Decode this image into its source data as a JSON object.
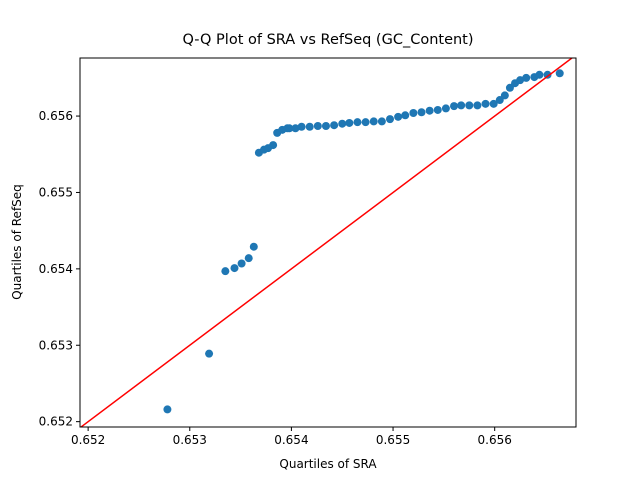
{
  "chart_data": {
    "type": "scatter",
    "title": "Q-Q Plot of SRA vs RefSeq (GC_Content)",
    "xlabel": "Quartiles of SRA",
    "ylabel": "Quartiles of RefSeq",
    "xlim": [
      0.65192,
      0.6568
    ],
    "ylim": [
      0.65193,
      0.65676
    ],
    "xticks": [
      0.652,
      0.653,
      0.654,
      0.655,
      0.656
    ],
    "yticks": [
      0.652,
      0.653,
      0.654,
      0.655,
      0.656
    ],
    "color": "#1f77b4",
    "line_color": "#ff0000",
    "x": [
      0.65278,
      0.65319,
      0.65335,
      0.65344,
      0.65351,
      0.65358,
      0.65363,
      0.65368,
      0.65373,
      0.65377,
      0.65382,
      0.65386,
      0.65391,
      0.65396,
      0.65398,
      0.65404,
      0.6541,
      0.65418,
      0.65426,
      0.65434,
      0.65442,
      0.6545,
      0.65457,
      0.65465,
      0.65473,
      0.65481,
      0.65489,
      0.65497,
      0.65505,
      0.65512,
      0.6552,
      0.65528,
      0.65536,
      0.65544,
      0.65552,
      0.6556,
      0.65567,
      0.65575,
      0.65583,
      0.65591,
      0.65599,
      0.65605,
      0.6561,
      0.65615,
      0.6562,
      0.65625,
      0.65631,
      0.65639,
      0.65644,
      0.65652,
      0.65664
    ],
    "y": [
      0.65216,
      0.65289,
      0.65397,
      0.65401,
      0.65407,
      0.65414,
      0.65429,
      0.65552,
      0.65556,
      0.65558,
      0.65562,
      0.65578,
      0.65582,
      0.65584,
      0.65584,
      0.65584,
      0.65586,
      0.65586,
      0.65587,
      0.65587,
      0.65588,
      0.6559,
      0.65591,
      0.65592,
      0.65592,
      0.65593,
      0.65593,
      0.65596,
      0.65599,
      0.65601,
      0.65604,
      0.65605,
      0.65607,
      0.65608,
      0.6561,
      0.65613,
      0.65614,
      0.65614,
      0.65614,
      0.65616,
      0.65616,
      0.65621,
      0.65627,
      0.65637,
      0.65643,
      0.65647,
      0.6565,
      0.65651,
      0.65654,
      0.65654,
      0.65656
    ]
  }
}
